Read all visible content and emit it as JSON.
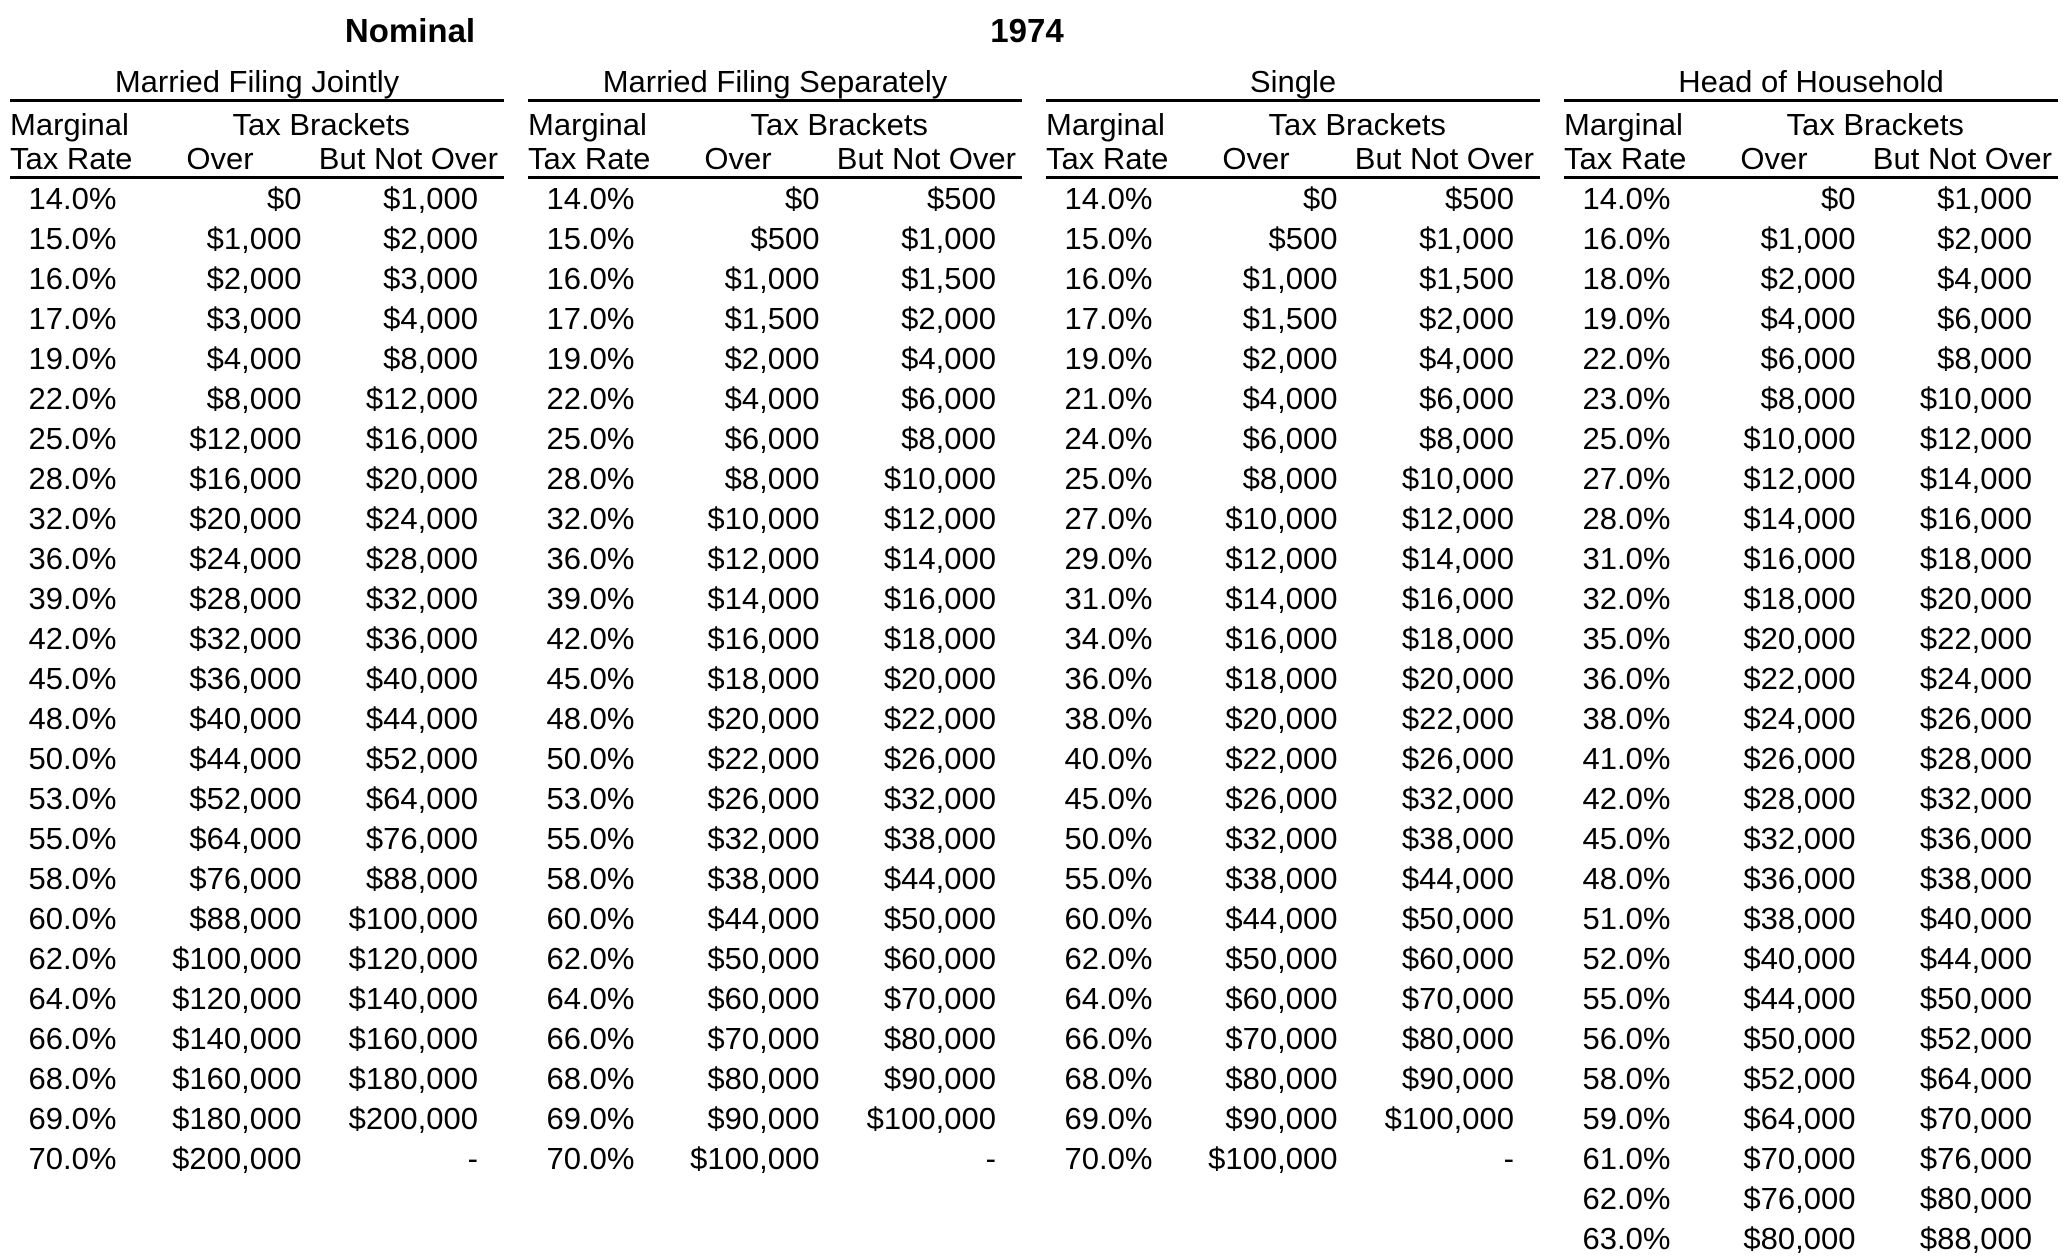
{
  "titles": {
    "sheet_label": "Nominal",
    "year": "1974"
  },
  "column_headers": {
    "marginal": "Marginal",
    "tax_brackets": "Tax Brackets",
    "tax_rate": "Tax Rate",
    "over": "Over",
    "but_not_over": "But Not Over"
  },
  "groups": [
    {
      "title": "Married Filing Jointly",
      "rows": [
        [
          "14.0%",
          "$0",
          "$1,000"
        ],
        [
          "15.0%",
          "$1,000",
          "$2,000"
        ],
        [
          "16.0%",
          "$2,000",
          "$3,000"
        ],
        [
          "17.0%",
          "$3,000",
          "$4,000"
        ],
        [
          "19.0%",
          "$4,000",
          "$8,000"
        ],
        [
          "22.0%",
          "$8,000",
          "$12,000"
        ],
        [
          "25.0%",
          "$12,000",
          "$16,000"
        ],
        [
          "28.0%",
          "$16,000",
          "$20,000"
        ],
        [
          "32.0%",
          "$20,000",
          "$24,000"
        ],
        [
          "36.0%",
          "$24,000",
          "$28,000"
        ],
        [
          "39.0%",
          "$28,000",
          "$32,000"
        ],
        [
          "42.0%",
          "$32,000",
          "$36,000"
        ],
        [
          "45.0%",
          "$36,000",
          "$40,000"
        ],
        [
          "48.0%",
          "$40,000",
          "$44,000"
        ],
        [
          "50.0%",
          "$44,000",
          "$52,000"
        ],
        [
          "53.0%",
          "$52,000",
          "$64,000"
        ],
        [
          "55.0%",
          "$64,000",
          "$76,000"
        ],
        [
          "58.0%",
          "$76,000",
          "$88,000"
        ],
        [
          "60.0%",
          "$88,000",
          "$100,000"
        ],
        [
          "62.0%",
          "$100,000",
          "$120,000"
        ],
        [
          "64.0%",
          "$120,000",
          "$140,000"
        ],
        [
          "66.0%",
          "$140,000",
          "$160,000"
        ],
        [
          "68.0%",
          "$160,000",
          "$180,000"
        ],
        [
          "69.0%",
          "$180,000",
          "$200,000"
        ],
        [
          "70.0%",
          "$200,000",
          "-"
        ]
      ]
    },
    {
      "title": "Married Filing Separately",
      "rows": [
        [
          "14.0%",
          "$0",
          "$500"
        ],
        [
          "15.0%",
          "$500",
          "$1,000"
        ],
        [
          "16.0%",
          "$1,000",
          "$1,500"
        ],
        [
          "17.0%",
          "$1,500",
          "$2,000"
        ],
        [
          "19.0%",
          "$2,000",
          "$4,000"
        ],
        [
          "22.0%",
          "$4,000",
          "$6,000"
        ],
        [
          "25.0%",
          "$6,000",
          "$8,000"
        ],
        [
          "28.0%",
          "$8,000",
          "$10,000"
        ],
        [
          "32.0%",
          "$10,000",
          "$12,000"
        ],
        [
          "36.0%",
          "$12,000",
          "$14,000"
        ],
        [
          "39.0%",
          "$14,000",
          "$16,000"
        ],
        [
          "42.0%",
          "$16,000",
          "$18,000"
        ],
        [
          "45.0%",
          "$18,000",
          "$20,000"
        ],
        [
          "48.0%",
          "$20,000",
          "$22,000"
        ],
        [
          "50.0%",
          "$22,000",
          "$26,000"
        ],
        [
          "53.0%",
          "$26,000",
          "$32,000"
        ],
        [
          "55.0%",
          "$32,000",
          "$38,000"
        ],
        [
          "58.0%",
          "$38,000",
          "$44,000"
        ],
        [
          "60.0%",
          "$44,000",
          "$50,000"
        ],
        [
          "62.0%",
          "$50,000",
          "$60,000"
        ],
        [
          "64.0%",
          "$60,000",
          "$70,000"
        ],
        [
          "66.0%",
          "$70,000",
          "$80,000"
        ],
        [
          "68.0%",
          "$80,000",
          "$90,000"
        ],
        [
          "69.0%",
          "$90,000",
          "$100,000"
        ],
        [
          "70.0%",
          "$100,000",
          "-"
        ]
      ]
    },
    {
      "title": "Single",
      "rows": [
        [
          "14.0%",
          "$0",
          "$500"
        ],
        [
          "15.0%",
          "$500",
          "$1,000"
        ],
        [
          "16.0%",
          "$1,000",
          "$1,500"
        ],
        [
          "17.0%",
          "$1,500",
          "$2,000"
        ],
        [
          "19.0%",
          "$2,000",
          "$4,000"
        ],
        [
          "21.0%",
          "$4,000",
          "$6,000"
        ],
        [
          "24.0%",
          "$6,000",
          "$8,000"
        ],
        [
          "25.0%",
          "$8,000",
          "$10,000"
        ],
        [
          "27.0%",
          "$10,000",
          "$12,000"
        ],
        [
          "29.0%",
          "$12,000",
          "$14,000"
        ],
        [
          "31.0%",
          "$14,000",
          "$16,000"
        ],
        [
          "34.0%",
          "$16,000",
          "$18,000"
        ],
        [
          "36.0%",
          "$18,000",
          "$20,000"
        ],
        [
          "38.0%",
          "$20,000",
          "$22,000"
        ],
        [
          "40.0%",
          "$22,000",
          "$26,000"
        ],
        [
          "45.0%",
          "$26,000",
          "$32,000"
        ],
        [
          "50.0%",
          "$32,000",
          "$38,000"
        ],
        [
          "55.0%",
          "$38,000",
          "$44,000"
        ],
        [
          "60.0%",
          "$44,000",
          "$50,000"
        ],
        [
          "62.0%",
          "$50,000",
          "$60,000"
        ],
        [
          "64.0%",
          "$60,000",
          "$70,000"
        ],
        [
          "66.0%",
          "$70,000",
          "$80,000"
        ],
        [
          "68.0%",
          "$80,000",
          "$90,000"
        ],
        [
          "69.0%",
          "$90,000",
          "$100,000"
        ],
        [
          "70.0%",
          "$100,000",
          "-"
        ]
      ]
    },
    {
      "title": "Head of Household",
      "rows": [
        [
          "14.0%",
          "$0",
          "$1,000"
        ],
        [
          "16.0%",
          "$1,000",
          "$2,000"
        ],
        [
          "18.0%",
          "$2,000",
          "$4,000"
        ],
        [
          "19.0%",
          "$4,000",
          "$6,000"
        ],
        [
          "22.0%",
          "$6,000",
          "$8,000"
        ],
        [
          "23.0%",
          "$8,000",
          "$10,000"
        ],
        [
          "25.0%",
          "$10,000",
          "$12,000"
        ],
        [
          "27.0%",
          "$12,000",
          "$14,000"
        ],
        [
          "28.0%",
          "$14,000",
          "$16,000"
        ],
        [
          "31.0%",
          "$16,000",
          "$18,000"
        ],
        [
          "32.0%",
          "$18,000",
          "$20,000"
        ],
        [
          "35.0%",
          "$20,000",
          "$22,000"
        ],
        [
          "36.0%",
          "$22,000",
          "$24,000"
        ],
        [
          "38.0%",
          "$24,000",
          "$26,000"
        ],
        [
          "41.0%",
          "$26,000",
          "$28,000"
        ],
        [
          "42.0%",
          "$28,000",
          "$32,000"
        ],
        [
          "45.0%",
          "$32,000",
          "$36,000"
        ],
        [
          "48.0%",
          "$36,000",
          "$38,000"
        ],
        [
          "51.0%",
          "$38,000",
          "$40,000"
        ],
        [
          "52.0%",
          "$40,000",
          "$44,000"
        ],
        [
          "55.0%",
          "$44,000",
          "$50,000"
        ],
        [
          "56.0%",
          "$50,000",
          "$52,000"
        ],
        [
          "58.0%",
          "$52,000",
          "$64,000"
        ],
        [
          "59.0%",
          "$64,000",
          "$70,000"
        ],
        [
          "61.0%",
          "$70,000",
          "$76,000"
        ],
        [
          "62.0%",
          "$76,000",
          "$80,000"
        ],
        [
          "63.0%",
          "$80,000",
          "$88,000"
        ]
      ]
    }
  ]
}
